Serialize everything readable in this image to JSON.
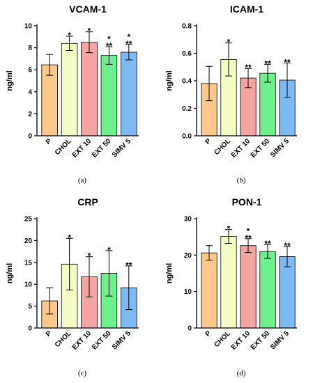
{
  "chart_data": [
    {
      "type": "bar",
      "title": "VCAM-1",
      "ylabel": "ng/ml",
      "xlabel": "",
      "ylim": [
        0,
        10
      ],
      "yticks": [
        0,
        2,
        4,
        6,
        8,
        10
      ],
      "categories": [
        "P",
        "CHOL",
        "EXT 10",
        "EXT 50",
        "SIMV 5"
      ],
      "values": [
        6.45,
        8.4,
        8.5,
        7.3,
        7.6
      ],
      "errors": [
        0.95,
        0.65,
        0.95,
        0.8,
        0.7
      ],
      "stars_top": [
        "",
        "*",
        "*",
        "*",
        "*"
      ],
      "stars_bottom": [
        "",
        "",
        "",
        "**",
        "**"
      ],
      "colors": [
        "#fbc88a",
        "#f5fbc4",
        "#f6a3a3",
        "#6ef08e",
        "#7dbaf5"
      ],
      "caption": "(a)"
    },
    {
      "type": "bar",
      "title": "ICAM-1",
      "ylabel": "ng/ml",
      "xlabel": "",
      "ylim": [
        0,
        0.8
      ],
      "yticks": [
        "0.0",
        "0.2",
        "0.4",
        "0.6",
        "0.8"
      ],
      "categories": [
        "P",
        "CHOL",
        "EXT 10",
        "EXT 50",
        "SIMV 5"
      ],
      "values": [
        0.38,
        0.555,
        0.42,
        0.455,
        0.405
      ],
      "errors": [
        0.125,
        0.12,
        0.07,
        0.065,
        0.125
      ],
      "stars_top": [
        "",
        "*",
        "",
        "",
        ""
      ],
      "stars_bottom": [
        "",
        "",
        "**",
        "**",
        "**"
      ],
      "colors": [
        "#fbc88a",
        "#f5fbc4",
        "#f6a3a3",
        "#6ef08e",
        "#7dbaf5"
      ],
      "caption": "(b)"
    },
    {
      "type": "bar",
      "title": "CRP",
      "ylabel": "ng/ml",
      "xlabel": "",
      "ylim": [
        0,
        25
      ],
      "yticks": [
        0,
        5,
        10,
        15,
        20,
        25
      ],
      "categories": [
        "P",
        "CHOL",
        "EXT 10",
        "EXT 50",
        "SIMV 5"
      ],
      "values": [
        6.2,
        14.6,
        11.7,
        12.5,
        9.2
      ],
      "errors": [
        3.0,
        5.9,
        4.6,
        5.2,
        5.0
      ],
      "stars_top": [
        "",
        "*",
        "*",
        "*",
        ""
      ],
      "stars_bottom": [
        "",
        "",
        "",
        "",
        "**"
      ],
      "colors": [
        "#fbc88a",
        "#f5fbc4",
        "#f6a3a3",
        "#6ef08e",
        "#7dbaf5"
      ],
      "caption": "(c)"
    },
    {
      "type": "bar",
      "title": "PON-1",
      "ylabel": "ng/ml",
      "xlabel": "",
      "ylim": [
        0,
        30
      ],
      "yticks": [
        0,
        10,
        20,
        30
      ],
      "categories": [
        "P",
        "CHOL",
        "EXT 10",
        "EXT 50",
        "SIMV 5"
      ],
      "values": [
        20.6,
        25.1,
        22.6,
        21.0,
        19.6
      ],
      "errors": [
        2.0,
        1.9,
        1.9,
        1.9,
        2.8
      ],
      "stars_top": [
        "",
        "*",
        "*",
        "",
        ""
      ],
      "stars_bottom": [
        "",
        "",
        "**",
        "**",
        "**"
      ],
      "colors": [
        "#fbc88a",
        "#f5fbc4",
        "#f6a3a3",
        "#6ef08e",
        "#7dbaf5"
      ],
      "caption": "(d)"
    }
  ]
}
